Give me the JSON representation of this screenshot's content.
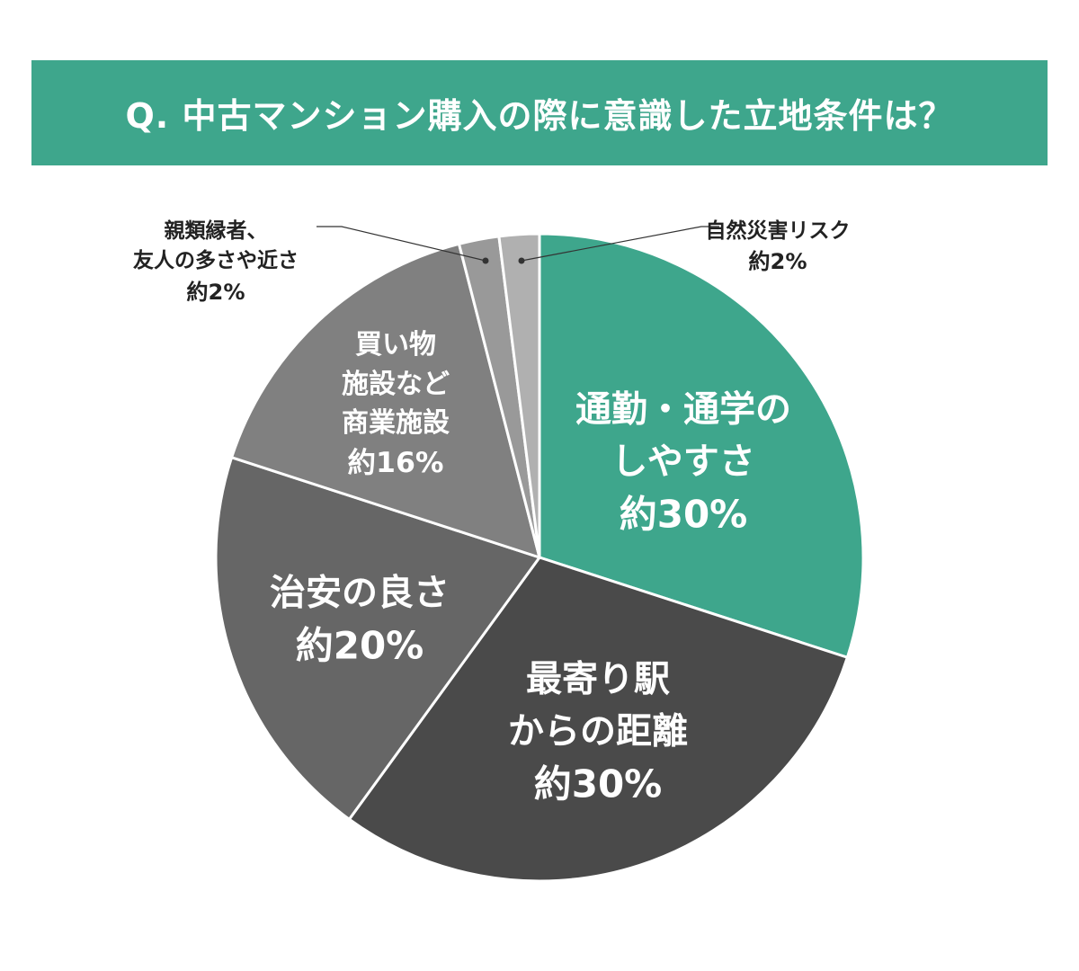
{
  "chart_data": {
    "type": "pie",
    "title": "Q. 中古マンション購入の際に意識した立地条件は？",
    "categories": [
      "通勤・通学の\nしやすさ",
      "最寄り駅\nからの距離",
      "治安の良さ",
      "買い物\n施設など\n商業施設",
      "親類縁者、\n友人の多さや近さ",
      "自然災害リスク"
    ],
    "values": [
      30,
      30,
      20,
      16,
      2,
      2
    ],
    "value_labels": [
      "約30%",
      "約30%",
      "約20%",
      "約16%",
      "約2%",
      "約2%"
    ],
    "colors": [
      "#3ea68c",
      "#4a4a4a",
      "#666666",
      "#808080",
      "#999999",
      "#b0b0b0"
    ]
  }
}
